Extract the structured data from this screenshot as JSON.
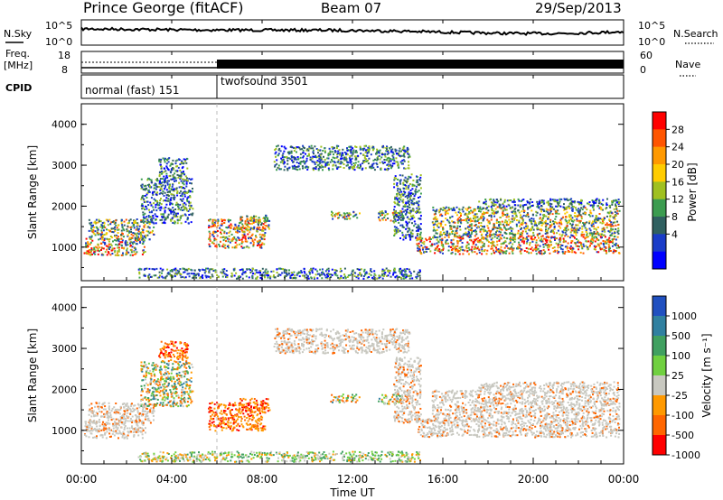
{
  "header": {
    "station": "Prince George (fitACF)",
    "beam": "Beam 07",
    "date": "29/Sep/2013"
  },
  "strips": {
    "nsky_label": "N.Sky",
    "nsearch_label": "N.Search",
    "freq_label_1": "Freq.",
    "freq_label_2": "[MHz]",
    "nave_label": "Nave",
    "cpid_label": "CPID",
    "cpid_modes": [
      {
        "name": "normal (fast) 151",
        "start_hour": 0,
        "end_hour": 6
      },
      {
        "name": "twofsound 3501",
        "start_hour": 6,
        "end_hour": 24
      }
    ],
    "noise_ticks_left": [
      "10^5",
      "10^0"
    ],
    "noise_ticks_right": [
      "10^5",
      "10^0"
    ],
    "freq_ticks": [
      "18",
      "8"
    ],
    "nave_ticks": [
      "60",
      "0"
    ]
  },
  "axes": {
    "x_label": "Time UT",
    "x_ticks": [
      "00:00",
      "04:00",
      "08:00",
      "12:00",
      "16:00",
      "20:00",
      "00:00"
    ],
    "x_range_hours": [
      0,
      24
    ],
    "y_label": "Slant Range [km]",
    "y_range_km": [
      180,
      4500
    ],
    "y_ticks": [
      "1000",
      "2000",
      "3000",
      "4000"
    ]
  },
  "colorbars": {
    "power": {
      "label": "Power [dB]",
      "ticks": [
        "28",
        "24",
        "20",
        "16",
        "12",
        "8",
        "4"
      ],
      "colors": [
        "#ff0000",
        "#ff5500",
        "#ff9900",
        "#ffcc00",
        "#a0c020",
        "#3c9c50",
        "#306060",
        "#1a3cc8",
        "#0000ff"
      ]
    },
    "velocity": {
      "label": "Velocity [m s⁻¹]",
      "ticks": [
        "1000",
        "500",
        "100",
        "25",
        "-25",
        "-100",
        "-500",
        "-1000"
      ],
      "colors": [
        "#2050c0",
        "#3080a0",
        "#40a060",
        "#70d040",
        "#c8c8c0",
        "#ff9900",
        "#ff6600",
        "#ff0000"
      ]
    }
  },
  "chart_data": {
    "type": "heatmap",
    "panels": [
      "power",
      "velocity"
    ],
    "echo_regions": [
      {
        "t0": 0.1,
        "t1": 2.8,
        "r0": 820,
        "r1": 1250,
        "power": "strong",
        "velocity": "ground"
      },
      {
        "t0": 0.3,
        "t1": 3.2,
        "r0": 1200,
        "r1": 1700,
        "power": "medium",
        "velocity": "ground"
      },
      {
        "t0": 2.6,
        "t1": 4.9,
        "r0": 1600,
        "r1": 2700,
        "power": "weak",
        "velocity": "mixed"
      },
      {
        "t0": 3.4,
        "t1": 4.7,
        "r0": 2700,
        "r1": 3200,
        "power": "weak",
        "velocity": "negative"
      },
      {
        "t0": 5.6,
        "t1": 8.1,
        "r0": 1000,
        "r1": 1700,
        "power": "strong",
        "velocity": "negative"
      },
      {
        "t0": 7.0,
        "t1": 8.3,
        "r0": 1450,
        "r1": 1800,
        "power": "medium",
        "velocity": "negative"
      },
      {
        "t0": 11.0,
        "t1": 12.3,
        "r0": 1700,
        "r1": 1900,
        "power": "medium",
        "velocity": "mixed"
      },
      {
        "t0": 13.1,
        "t1": 14.2,
        "r0": 1650,
        "r1": 1900,
        "power": "medium",
        "velocity": "mixed"
      },
      {
        "t0": 8.5,
        "t1": 14.5,
        "r0": 2900,
        "r1": 3500,
        "power": "weak",
        "velocity": "ground"
      },
      {
        "t0": 13.8,
        "t1": 15.0,
        "r0": 1200,
        "r1": 2800,
        "power": "weak",
        "velocity": "ground"
      },
      {
        "t0": 2.5,
        "t1": 15.0,
        "r0": 250,
        "r1": 500,
        "power": "weak",
        "velocity": "positive"
      },
      {
        "t0": 14.8,
        "t1": 23.8,
        "r0": 850,
        "r1": 1300,
        "power": "strong",
        "velocity": "ground"
      },
      {
        "t0": 15.5,
        "t1": 23.8,
        "r0": 1300,
        "r1": 2000,
        "power": "medium",
        "velocity": "ground"
      },
      {
        "t0": 17.5,
        "t1": 23.8,
        "r0": 2000,
        "r1": 2200,
        "power": "weak",
        "velocity": "ground"
      }
    ]
  }
}
